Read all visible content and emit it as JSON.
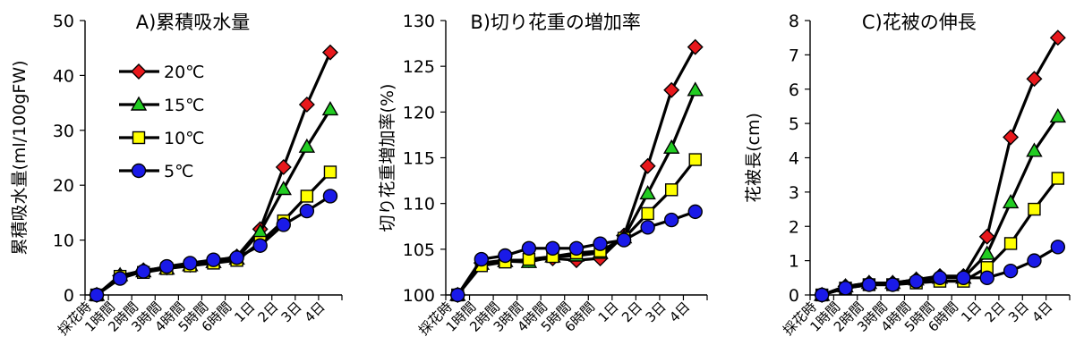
{
  "x_categories": [
    "採花時",
    "1時間",
    "2時間",
    "3時間",
    "4時間",
    "5時間",
    "6時間",
    "1日",
    "2日",
    "3日",
    "4日"
  ],
  "legend": [
    "20℃",
    "15℃",
    "10℃",
    "5℃"
  ],
  "series_style": [
    {
      "name": "20℃",
      "color": "#e8181c",
      "marker": "diamond"
    },
    {
      "name": "15℃",
      "color": "#22cc22",
      "marker": "triangle"
    },
    {
      "name": "10℃",
      "color": "#ffff00",
      "marker": "square"
    },
    {
      "name": "5℃",
      "color": "#1a1ae8",
      "marker": "circle"
    }
  ],
  "chart_data": [
    {
      "type": "line",
      "title": "A)累積吸水量",
      "xlabel": "",
      "ylabel": "累積吸水量(ml/100gFW)",
      "ylim": [
        0,
        50
      ],
      "yticks": [
        0,
        10,
        20,
        30,
        40,
        50
      ],
      "categories": [
        "採花時",
        "1時間",
        "2時間",
        "3時間",
        "4時間",
        "5時間",
        "6時間",
        "1日",
        "2日",
        "3日",
        "4日"
      ],
      "series": [
        {
          "name": "20℃",
          "values": [
            0,
            3.5,
            4.5,
            5.0,
            5.5,
            6.2,
            7.0,
            12.0,
            23.3,
            34.7,
            44.2
          ]
        },
        {
          "name": "15℃",
          "values": [
            0,
            3.6,
            4.3,
            4.8,
            5.4,
            6.0,
            6.6,
            11.5,
            19.3,
            27.0,
            33.8
          ]
        },
        {
          "name": "10℃",
          "values": [
            0,
            3.4,
            4.1,
            4.8,
            5.3,
            5.8,
            6.3,
            9.6,
            13.5,
            18.0,
            22.4
          ]
        },
        {
          "name": "5℃",
          "values": [
            0,
            3.0,
            4.3,
            5.2,
            5.8,
            6.4,
            6.8,
            9.0,
            12.8,
            15.3,
            18.0
          ]
        }
      ]
    },
    {
      "type": "line",
      "title": "B)切り花重の増加率",
      "xlabel": "",
      "ylabel": "切り花重増加率(%)",
      "ylim": [
        100,
        130
      ],
      "yticks": [
        100,
        105,
        110,
        115,
        120,
        125,
        130
      ],
      "categories": [
        "採花時",
        "1時間",
        "2時間",
        "3時間",
        "4時間",
        "5時間",
        "6時間",
        "1日",
        "2日",
        "3日",
        "4日"
      ],
      "series": [
        {
          "name": "20℃",
          "values": [
            100,
            103.5,
            103.8,
            103.8,
            104.0,
            103.8,
            104.0,
            106.5,
            114.1,
            122.4,
            127.1
          ]
        },
        {
          "name": "15℃",
          "values": [
            100,
            103.4,
            103.7,
            103.6,
            104.2,
            104.3,
            104.6,
            106.3,
            111.1,
            116.1,
            122.4
          ]
        },
        {
          "name": "10℃",
          "values": [
            100,
            103.2,
            103.6,
            103.9,
            104.2,
            104.6,
            104.8,
            106.2,
            108.9,
            111.5,
            114.8
          ]
        },
        {
          "name": "5℃",
          "values": [
            100,
            103.9,
            104.3,
            105.1,
            105.1,
            105.1,
            105.6,
            106.0,
            107.4,
            108.2,
            109.1
          ]
        }
      ]
    },
    {
      "type": "line",
      "title": "C)花被の伸長",
      "xlabel": "",
      "ylabel": "花被長(cm)",
      "ylim": [
        0,
        8
      ],
      "yticks": [
        0,
        1,
        2,
        3,
        4,
        5,
        6,
        7,
        8
      ],
      "categories": [
        "採花時",
        "1時間",
        "2時間",
        "3時間",
        "4時間",
        "5時間",
        "6時間",
        "1日",
        "2日",
        "3日",
        "4日"
      ],
      "series": [
        {
          "name": "20℃",
          "values": [
            0,
            0.25,
            0.35,
            0.35,
            0.45,
            0.55,
            0.55,
            1.7,
            4.6,
            6.3,
            7.5
          ]
        },
        {
          "name": "15℃",
          "values": [
            0,
            0.25,
            0.35,
            0.35,
            0.45,
            0.5,
            0.5,
            1.2,
            2.7,
            4.2,
            5.2
          ]
        },
        {
          "name": "10℃",
          "values": [
            0,
            0.2,
            0.3,
            0.3,
            0.35,
            0.4,
            0.4,
            0.8,
            1.5,
            2.5,
            3.4
          ]
        },
        {
          "name": "5℃",
          "values": [
            0,
            0.2,
            0.3,
            0.3,
            0.4,
            0.5,
            0.5,
            0.5,
            0.7,
            1.0,
            1.4
          ]
        }
      ]
    }
  ]
}
